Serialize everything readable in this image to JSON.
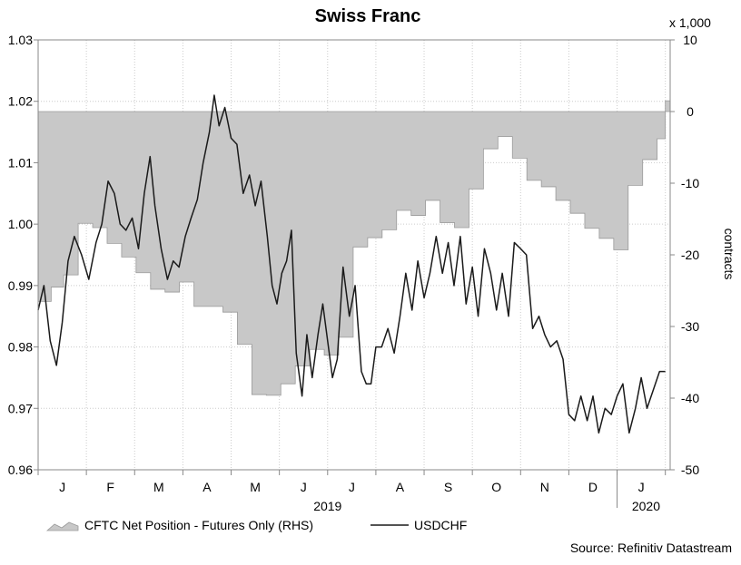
{
  "chart_data": {
    "type": "line",
    "title": "Swiss Franc",
    "y2_unit": "x 1,000",
    "y2_label": "contracts",
    "source": "Source: Refinitiv Datastream",
    "ylim": [
      0.96,
      1.03
    ],
    "y_ticks": [
      "0.96",
      "0.97",
      "0.98",
      "0.99",
      "1.00",
      "1.01",
      "1.02",
      "1.03"
    ],
    "y_tick_values": [
      0.96,
      0.97,
      0.98,
      0.99,
      1.0,
      1.01,
      1.02,
      1.03
    ],
    "y2lim": [
      -50,
      10
    ],
    "y2_ticks": [
      "-50",
      "-40",
      "-30",
      "-20",
      "-10",
      "0",
      "10"
    ],
    "y2_tick_values": [
      -50,
      -40,
      -30,
      -20,
      -10,
      0,
      10
    ],
    "x_month_labels": [
      "J",
      "F",
      "M",
      "A",
      "M",
      "J",
      "J",
      "A",
      "S",
      "O",
      "N",
      "D",
      "J"
    ],
    "x_year_labels": [
      "2019",
      "2020"
    ],
    "series": [
      {
        "name": "CFTC Net Position - Futures Only (RHS)",
        "type": "area",
        "axis": "right",
        "color": "#c8c8c8",
        "x": [
          0.0,
          0.27,
          0.53,
          0.83,
          1.13,
          1.43,
          1.73,
          2.03,
          2.33,
          2.63,
          2.93,
          3.23,
          3.53,
          3.83,
          4.13,
          4.43,
          4.73,
          5.03,
          5.33,
          5.63,
          5.93,
          6.23,
          6.53,
          6.83,
          7.13,
          7.43,
          7.73,
          8.03,
          8.33,
          8.63,
          8.93,
          9.23,
          9.53,
          9.83,
          10.13,
          10.43,
          10.73,
          11.03,
          11.33,
          11.63,
          11.93,
          12.23,
          12.53,
          12.83,
          13.0
        ],
        "values": [
          -26.5,
          -24.5,
          -22.8,
          -15.6,
          -16.2,
          -18.4,
          -20.3,
          -22.5,
          -24.8,
          -25.2,
          -23.8,
          -27.2,
          -27.2,
          -28.0,
          -32.5,
          -39.5,
          -39.6,
          -38.0,
          -35.5,
          -33.2,
          -34.0,
          -31.5,
          -18.9,
          -17.6,
          -16.5,
          -13.8,
          -14.5,
          -12.4,
          -15.5,
          -16.2,
          -10.8,
          -5.2,
          -3.5,
          -6.5,
          -9.6,
          -10.5,
          -12.4,
          -14.2,
          -16.3,
          -17.7,
          -19.3,
          -10.3,
          -6.7,
          -3.8,
          1.5
        ]
      },
      {
        "name": "USDCHF",
        "type": "line",
        "axis": "left",
        "color": "#1a1a1a",
        "x": [
          0.0,
          0.12,
          0.25,
          0.38,
          0.5,
          0.62,
          0.75,
          0.9,
          1.05,
          1.2,
          1.32,
          1.45,
          1.58,
          1.7,
          1.82,
          1.95,
          2.08,
          2.2,
          2.32,
          2.42,
          2.55,
          2.68,
          2.8,
          2.92,
          3.05,
          3.17,
          3.3,
          3.42,
          3.55,
          3.65,
          3.75,
          3.87,
          4.0,
          4.12,
          4.25,
          4.38,
          4.5,
          4.62,
          4.75,
          4.85,
          4.95,
          5.05,
          5.15,
          5.25,
          5.35,
          5.47,
          5.57,
          5.68,
          5.8,
          5.9,
          6.0,
          6.1,
          6.2,
          6.32,
          6.45,
          6.57,
          6.7,
          6.8,
          6.9,
          7.0,
          7.12,
          7.25,
          7.38,
          7.5,
          7.62,
          7.75,
          7.87,
          8.0,
          8.12,
          8.25,
          8.38,
          8.5,
          8.62,
          8.75,
          8.87,
          9.0,
          9.12,
          9.25,
          9.38,
          9.5,
          9.62,
          9.75,
          9.87,
          10.0,
          10.12,
          10.25,
          10.38,
          10.5,
          10.62,
          10.75,
          10.88,
          11.0,
          11.12,
          11.25,
          11.38,
          11.5,
          11.62,
          11.75,
          11.88,
          12.0,
          12.12,
          12.25,
          12.38,
          12.5,
          12.62,
          12.75,
          12.88,
          13.0
        ],
        "values": [
          0.986,
          0.99,
          0.981,
          0.977,
          0.984,
          0.994,
          0.998,
          0.995,
          0.991,
          0.997,
          1.0,
          1.007,
          1.005,
          1.0,
          0.999,
          1.001,
          0.996,
          1.005,
          1.011,
          1.003,
          0.996,
          0.991,
          0.994,
          0.993,
          0.998,
          1.001,
          1.004,
          1.01,
          1.015,
          1.021,
          1.016,
          1.019,
          1.014,
          1.013,
          1.005,
          1.008,
          1.003,
          1.007,
          0.998,
          0.99,
          0.987,
          0.992,
          0.994,
          0.999,
          0.979,
          0.972,
          0.982,
          0.975,
          0.982,
          0.987,
          0.981,
          0.975,
          0.978,
          0.993,
          0.985,
          0.99,
          0.976,
          0.974,
          0.974,
          0.98,
          0.98,
          0.983,
          0.979,
          0.985,
          0.992,
          0.986,
          0.994,
          0.988,
          0.992,
          0.998,
          0.992,
          0.997,
          0.99,
          0.998,
          0.987,
          0.993,
          0.985,
          0.996,
          0.992,
          0.986,
          0.992,
          0.985,
          0.997,
          0.996,
          0.995,
          0.983,
          0.985,
          0.982,
          0.98,
          0.981,
          0.978,
          0.969,
          0.968,
          0.972,
          0.968,
          0.972,
          0.966,
          0.97,
          0.969,
          0.972,
          0.974,
          0.966,
          0.97,
          0.975,
          0.97,
          0.973,
          0.976,
          0.976
        ]
      }
    ],
    "legend": {
      "position": "bottom-left"
    },
    "grid": true
  }
}
